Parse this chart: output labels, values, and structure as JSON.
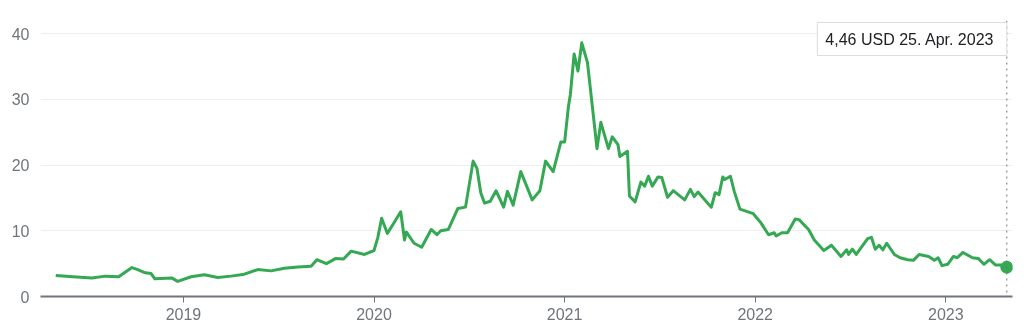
{
  "chart_data": {
    "type": "line",
    "xlim": [
      2018.25,
      2023.35
    ],
    "xticks": [
      2019,
      2020,
      2021,
      2022,
      2023
    ],
    "ylim": [
      0,
      42
    ],
    "yticks": [
      0,
      10,
      20,
      30,
      40
    ],
    "grid": "y",
    "marker": "none",
    "line_style": "solid",
    "series": [
      {
        "color": "#34a853",
        "x": [
          2018.33,
          2018.42,
          2018.52,
          2018.59,
          2018.66,
          2018.73,
          2018.76,
          2018.8,
          2018.83,
          2018.85,
          2018.94,
          2018.97,
          2019.04,
          2019.11,
          2019.18,
          2019.25,
          2019.32,
          2019.39,
          2019.46,
          2019.53,
          2019.6,
          2019.67,
          2019.7,
          2019.75,
          2019.8,
          2019.84,
          2019.88,
          2019.95,
          2020.0,
          2020.02,
          2020.04,
          2020.07,
          2020.1,
          2020.14,
          2020.16,
          2020.17,
          2020.21,
          2020.25,
          2020.3,
          2020.33,
          2020.35,
          2020.39,
          2020.44,
          2020.48,
          2020.52,
          2020.54,
          2020.56,
          2020.58,
          2020.61,
          2020.64,
          2020.68,
          2020.7,
          2020.73,
          2020.77,
          2020.83,
          2020.87,
          2020.9,
          2020.94,
          2020.98,
          2021.0,
          2021.02,
          2021.03,
          2021.05,
          2021.07,
          2021.09,
          2021.12,
          2021.17,
          2021.19,
          2021.23,
          2021.25,
          2021.28,
          2021.29,
          2021.33,
          2021.34,
          2021.37,
          2021.4,
          2021.42,
          2021.44,
          2021.46,
          2021.49,
          2021.51,
          2021.54,
          2021.57,
          2021.63,
          2021.66,
          2021.68,
          2021.7,
          2021.76,
          2021.77,
          2021.79,
          2021.81,
          2021.83,
          2021.84,
          2021.87,
          2021.89,
          2021.92,
          2021.99,
          2022.03,
          2022.07,
          2022.1,
          2022.11,
          2022.14,
          2022.17,
          2022.21,
          2022.23,
          2022.28,
          2022.31,
          2022.36,
          2022.4,
          2022.45,
          2022.48,
          2022.49,
          2022.51,
          2022.53,
          2022.59,
          2022.61,
          2022.63,
          2022.65,
          2022.67,
          2022.69,
          2022.73,
          2022.76,
          2022.8,
          2022.83,
          2022.86,
          2022.91,
          2022.94,
          2022.96,
          2022.98,
          2023.01,
          2023.04,
          2023.06,
          2023.09,
          2023.14,
          2023.17,
          2023.2,
          2023.23,
          2023.26,
          2023.29,
          2023.32
        ],
        "values": [
          3.2,
          3.0,
          2.8,
          3.1,
          3.0,
          4.4,
          4.1,
          3.6,
          3.5,
          2.7,
          2.8,
          2.3,
          3.0,
          3.3,
          2.9,
          3.1,
          3.4,
          4.1,
          3.9,
          4.3,
          4.5,
          4.6,
          5.6,
          5.0,
          5.8,
          5.7,
          6.9,
          6.4,
          7.0,
          9.0,
          11.9,
          9.6,
          11.0,
          12.9,
          8.6,
          9.8,
          8.1,
          7.5,
          10.2,
          9.4,
          10.0,
          10.2,
          13.4,
          13.6,
          20.6,
          19.5,
          15.8,
          14.2,
          14.5,
          16.1,
          13.6,
          16.0,
          13.9,
          19.0,
          14.7,
          16.1,
          20.6,
          19.0,
          23.5,
          23.5,
          28.9,
          30.7,
          36.9,
          34.3,
          38.6,
          35.6,
          22.5,
          26.5,
          22.5,
          24.3,
          23.1,
          21.3,
          22.1,
          15.3,
          14.4,
          17.4,
          16.8,
          18.3,
          16.8,
          18.2,
          18.1,
          15.1,
          16.1,
          14.7,
          16.3,
          15.2,
          15.9,
          13.9,
          13.6,
          15.8,
          15.5,
          18.2,
          17.8,
          18.3,
          16.0,
          13.3,
          12.6,
          11.2,
          9.4,
          9.7,
          9.2,
          9.7,
          9.7,
          11.8,
          11.7,
          10.2,
          8.6,
          7.0,
          7.8,
          6.1,
          7.1,
          6.4,
          7.2,
          6.4,
          8.8,
          9.0,
          7.2,
          7.8,
          7.1,
          8.1,
          6.4,
          5.9,
          5.6,
          5.5,
          6.4,
          6.1,
          5.5,
          5.9,
          4.7,
          4.9,
          6.1,
          5.9,
          6.7,
          5.9,
          5.8,
          4.9,
          5.6,
          4.8,
          4.8,
          4.46
        ]
      }
    ],
    "ref_lines": [
      {
        "axis": "x",
        "value": 2023.32,
        "label": "4,46 USD  25. Apr. 2023",
        "color": "#70757a",
        "line_style": "dotted"
      }
    ]
  }
}
